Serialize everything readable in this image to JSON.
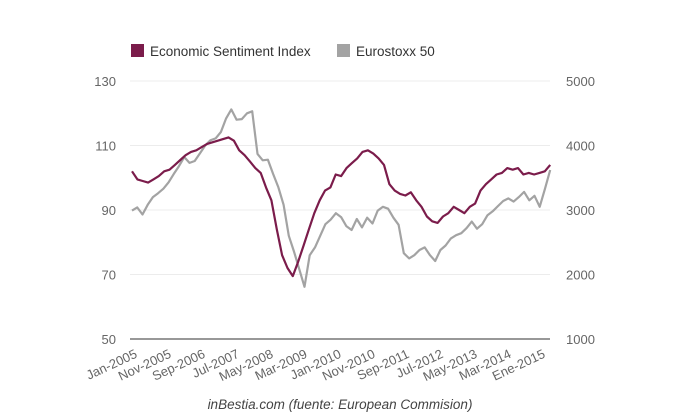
{
  "chart_data": {
    "type": "line",
    "title": "",
    "source_note": "inBestia.com (fuente: European Commision)",
    "legend": {
      "placement": "top-left",
      "entries": [
        {
          "name": "Economic Sentiment Index",
          "color": "#7b1c4b"
        },
        {
          "name": "Eurostoxx 50",
          "color": "#a3a3a3"
        }
      ]
    },
    "x_tick_labels": [
      "Jan-2005",
      "Nov-2005",
      "Sep-2006",
      "Jul-2007",
      "May-2008",
      "Mar-2009",
      "Jan-2010",
      "Nov-2010",
      "Sep-2011",
      "Jul-2012",
      "May-2013",
      "Mar-2014",
      "Ene-2015"
    ],
    "x_tick_month_index": [
      0,
      10,
      20,
      30,
      40,
      50,
      60,
      70,
      80,
      90,
      100,
      110,
      120
    ],
    "left_axis": {
      "ylim": [
        50,
        130
      ],
      "ticks": [
        50,
        70,
        90,
        110,
        130
      ],
      "series": "Economic Sentiment Index"
    },
    "right_axis": {
      "ylim": [
        1000,
        5000
      ],
      "ticks": [
        1000,
        2000,
        3000,
        4000,
        5000
      ],
      "series": "Eurostoxx 50"
    },
    "grid": true,
    "x_step_months": 2,
    "x_start": "Jan-2005",
    "series": [
      {
        "name": "Economic Sentiment Index",
        "axis": "left",
        "color": "#7b1c4b",
        "values": [
          102,
          99.5,
          99,
          98.5,
          99.5,
          100.5,
          102,
          102.5,
          104,
          105.5,
          107,
          108,
          108.5,
          109.5,
          110.5,
          111,
          111.5,
          112,
          112.5,
          111.5,
          108.5,
          107,
          105,
          103,
          101.5,
          97,
          93,
          84,
          76,
          72,
          69.5,
          74,
          79,
          84,
          89,
          93,
          96,
          97,
          101,
          100.5,
          103,
          104.5,
          106,
          108,
          108.5,
          107.5,
          106,
          104,
          98,
          96,
          95,
          94.5,
          95.5,
          93,
          91,
          88,
          86.5,
          86,
          88,
          89,
          91,
          90,
          89,
          91,
          92,
          96,
          98,
          99.5,
          101,
          101.5,
          103,
          102.5,
          103,
          101,
          101.5,
          101,
          101.5,
          102,
          104
        ]
      },
      {
        "name": "Eurostoxx 50",
        "axis": "right",
        "color": "#a3a3a3",
        "values": [
          2990,
          3040,
          2930,
          3080,
          3200,
          3260,
          3330,
          3430,
          3560,
          3680,
          3820,
          3730,
          3760,
          3880,
          4000,
          4080,
          4110,
          4210,
          4420,
          4560,
          4400,
          4410,
          4500,
          4530,
          3870,
          3770,
          3780,
          3560,
          3350,
          3080,
          2600,
          2350,
          2080,
          1810,
          2300,
          2420,
          2600,
          2780,
          2850,
          2950,
          2890,
          2750,
          2690,
          2860,
          2730,
          2880,
          2790,
          2990,
          3050,
          3020,
          2880,
          2770,
          2330,
          2250,
          2300,
          2380,
          2420,
          2300,
          2210,
          2380,
          2450,
          2560,
          2610,
          2640,
          2720,
          2820,
          2710,
          2780,
          2920,
          2980,
          3060,
          3140,
          3180,
          3130,
          3200,
          3280,
          3150,
          3220,
          3050,
          3330,
          3620
        ]
      }
    ]
  }
}
